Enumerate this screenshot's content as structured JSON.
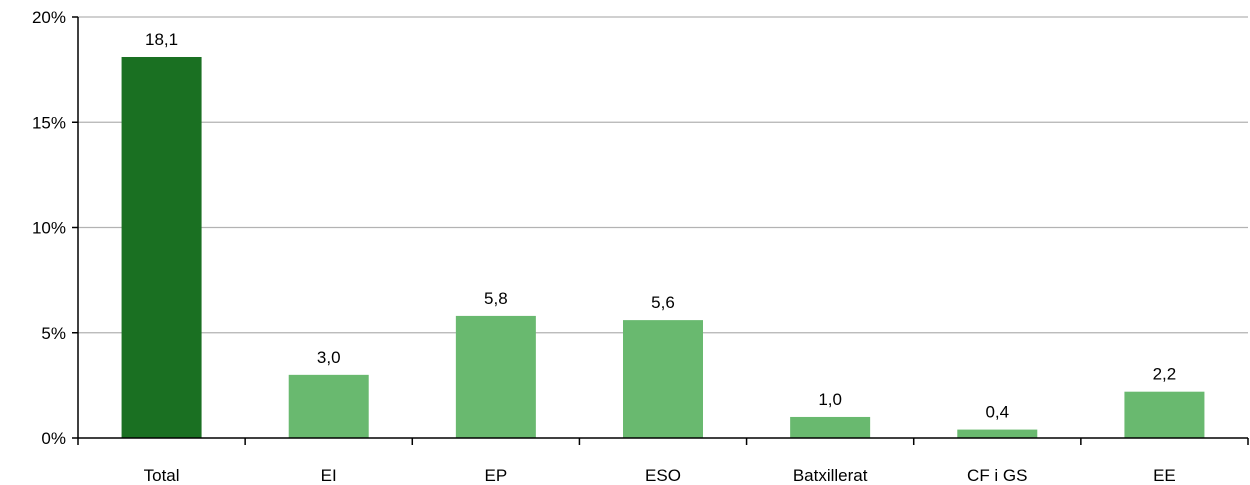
{
  "chart_data": {
    "type": "bar",
    "title": "",
    "xlabel": "",
    "ylabel": "",
    "categories": [
      "Total",
      "EI",
      "EP",
      "ESO",
      "Batxillerat",
      "CF i GS",
      "EE"
    ],
    "values": [
      18.1,
      3.0,
      5.8,
      5.6,
      1.0,
      0.4,
      2.2
    ],
    "value_labels": [
      "18,1",
      "3,0",
      "5,8",
      "5,6",
      "1,0",
      "0,4",
      "2,2"
    ],
    "ylim": [
      0,
      20
    ],
    "yticks": [
      0,
      5,
      10,
      15,
      20
    ],
    "ytick_labels": [
      "0%",
      "5%",
      "10%",
      "15%",
      "20%"
    ],
    "grid": true,
    "legend": "none",
    "colors": {
      "highlight": "#1a7022",
      "bar": "#69b96f",
      "grid": "#b3b3b3",
      "axis": "#000000"
    },
    "highlight_index": 0
  }
}
